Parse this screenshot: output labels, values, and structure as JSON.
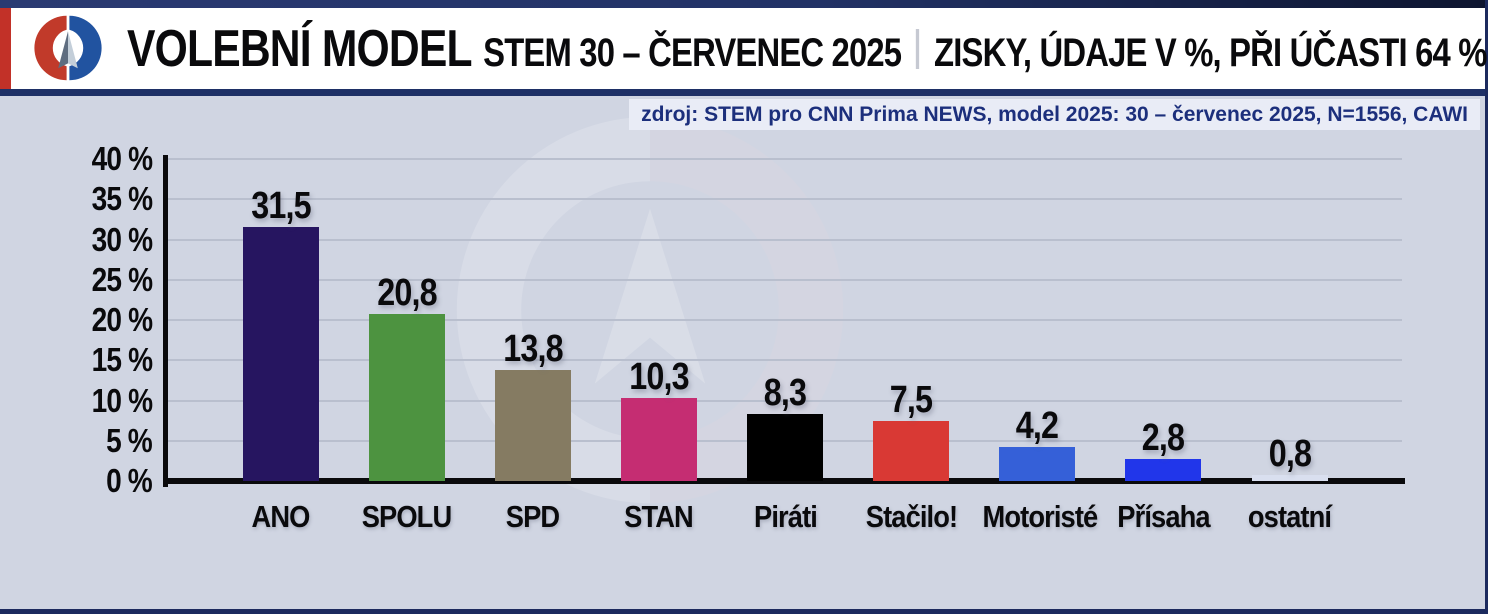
{
  "header": {
    "title": "VOLEBNÍ MODEL",
    "subtitle": "STEM 30 – ČERVENEC 2025",
    "tagline": "ZISKY, ÚDAJE V %, PŘI ÚČASTI 64 %",
    "logo": "cnn-prima-news-logo"
  },
  "source_line": "zdroj: STEM pro CNN Prima NEWS, model 2025: 30 – červenec 2025, N=1556, CAWI",
  "chart_data": {
    "type": "bar",
    "title": "Volební model STEM 30 – červenec 2025, zisky v %, při účasti 64 %",
    "categories": [
      "ANO",
      "SPOLU",
      "SPD",
      "STAN",
      "Piráti",
      "Stačilo!",
      "Motoristé",
      "Přísaha",
      "ostatní"
    ],
    "values": [
      31.5,
      20.8,
      13.8,
      10.3,
      8.3,
      7.5,
      4.2,
      2.8,
      0.8
    ],
    "value_labels": [
      "31,5",
      "20,8",
      "13,8",
      "10,3",
      "8,3",
      "7,5",
      "4,2",
      "2,8",
      "0,8"
    ],
    "bar_colors": [
      "#261560",
      "#4d9340",
      "#857b62",
      "#c52d72",
      "#000000",
      "#d93934",
      "#3560d8",
      "#2136ea",
      "#d9dfef"
    ],
    "xlabel": "",
    "ylabel": "",
    "ylim": [
      0,
      40
    ],
    "y_ticks": [
      0,
      5,
      10,
      15,
      20,
      25,
      30,
      35,
      40
    ],
    "y_tick_labels": [
      "0 %",
      "5 %",
      "10 %",
      "15 %",
      "20 %",
      "25 %",
      "30 %",
      "35 %",
      "40 %"
    ],
    "grid": "horizontal",
    "legend": "none"
  },
  "colors": {
    "page_background": "#d0d5e2",
    "header_background": "#ffffff",
    "navy": "#1e3066",
    "red_stripe": "#c23128",
    "logo_red": "#c13a2a",
    "logo_blue": "#2153a0",
    "source_text": "#1c2f7c",
    "gridline": "#b9bfce",
    "axis": "#0a0a0c"
  }
}
